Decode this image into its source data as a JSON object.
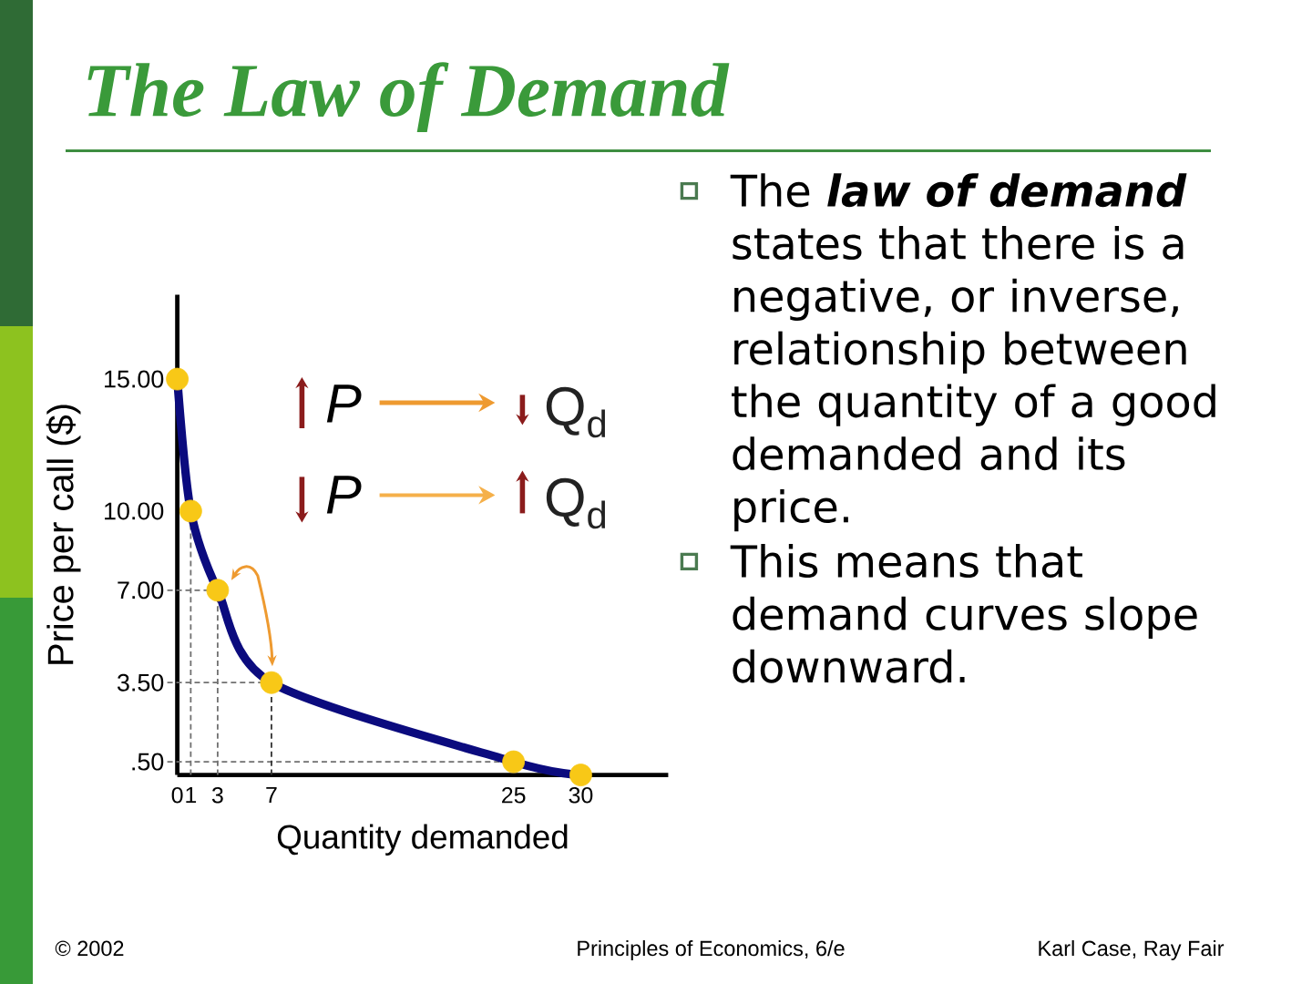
{
  "chart_data": {
    "type": "line",
    "title": "The Law of Demand",
    "xlabel": "Quantity demanded",
    "ylabel": "Price per call ($)",
    "x": [
      0,
      1,
      3,
      7,
      25,
      30
    ],
    "series": [
      {
        "color": "#0b0b7e",
        "values": [
          15,
          10,
          7,
          3.5,
          0.5,
          0
        ]
      },
      {
        "type": "scatter",
        "color": "#f8c817",
        "marker": "circle",
        "values": [
          15,
          10,
          7,
          3.5,
          0.5,
          0
        ]
      }
    ],
    "xlim": [
      0,
      36.5
    ],
    "ylim": [
      0,
      18.2
    ],
    "xticks": [
      0,
      1,
      3,
      7,
      25,
      30
    ],
    "yticks": [
      {
        "value": 0.5,
        "label": ".50"
      },
      {
        "value": 3.5,
        "label": "3.50"
      },
      {
        "value": 7,
        "label": "7.00"
      },
      {
        "value": 10,
        "label": "10.00"
      },
      {
        "value": 15,
        "label": "15.00"
      }
    ],
    "ref_lines": [
      {
        "axis": "y",
        "value": 7,
        "color": "#707070",
        "line_style": "dashed"
      },
      {
        "axis": "y",
        "value": 3.5,
        "color": "#707070",
        "line_style": "dashed"
      },
      {
        "axis": "y",
        "value": 0.5,
        "color": "#707070",
        "line_style": "dashed"
      },
      {
        "axis": "x",
        "value": 1,
        "color": "#707070",
        "line_style": "dashed"
      },
      {
        "axis": "x",
        "value": 3,
        "color": "#707070",
        "line_style": "dashed"
      },
      {
        "axis": "x",
        "value": 7,
        "color": "#333333",
        "line_style": "dashed"
      }
    ],
    "annotations": [
      "The **law of demand** states that there is a negative, or inverse, relationship between the quantity of a good demanded and its price.",
      "This means that demand curves slope downward.",
      "P",
      "Q$_{d}$",
      "P",
      "Q$_{d}$",
      "© 2002",
      "Principles of Economics, 6/e",
      "Karl Case, Ray Fair"
    ]
  }
}
